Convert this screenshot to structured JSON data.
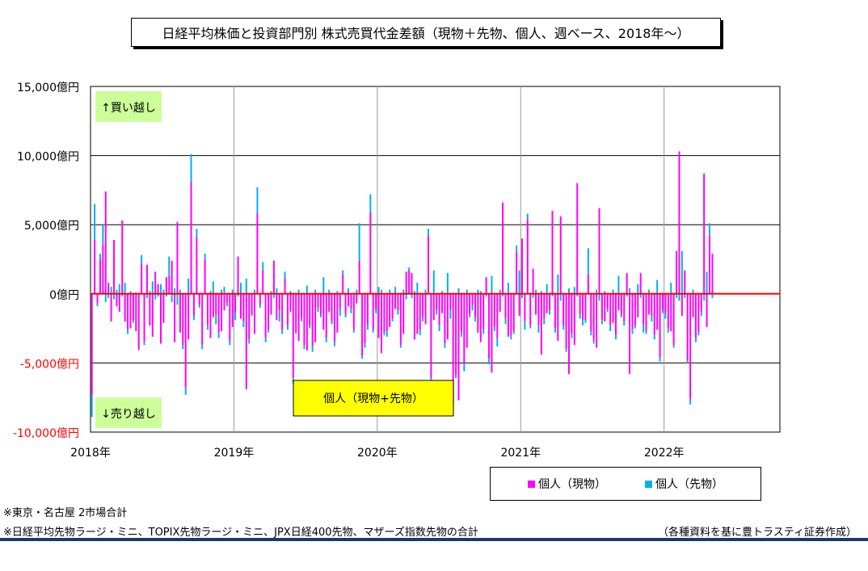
{
  "title": "日経平均株価と投資部門別 株式売買代金差額（現物＋先物、個人、週ベース、2018年〜）",
  "chart_data": {
    "type": "bar",
    "stacked": true,
    "title": "日経平均株価と投資部門別 株式売買代金差額（現物＋先物、個人、週ベース、2018年〜）",
    "xlabel": "",
    "ylabel": "",
    "x_ticks": [
      "2018年",
      "2019年",
      "2020年",
      "2021年",
      "2022年"
    ],
    "y_ticks": [
      "15,000億円",
      "10,000億円",
      "5,000億円",
      "0億円",
      "-5,000億円",
      "-10,000億円"
    ],
    "ylim": [
      -10000,
      15000
    ],
    "xlim_weeks": [
      0,
      250
    ],
    "grid": true,
    "legend_position": "bottom-right",
    "colors": {
      "spot": "#ff00ff",
      "futures": "#00b0f0",
      "zero_line": "#ff0000"
    },
    "annotations": {
      "buy_label": "↑買い越し",
      "sell_label": "↓売り越し",
      "series_box": "個人（現物+先物）"
    },
    "series": [
      {
        "name": "個人（現物）",
        "values": [
          -7300,
          3900,
          -700,
          2500,
          3600,
          7400,
          800,
          -2000,
          3900,
          -900,
          -1300,
          5300,
          -2000,
          -2600,
          -2500,
          -1900,
          -2700,
          -4000,
          2200,
          -3500,
          2100,
          -2300,
          -3100,
          1600,
          700,
          -3600,
          -2100,
          1200,
          1300,
          2400,
          -3500,
          5200,
          -2800,
          -3700,
          -6800,
          -3300,
          8100,
          -1600,
          4100,
          -800,
          -3700,
          2500,
          -2300,
          -3200,
          -1700,
          -1500,
          -2800,
          -2700,
          -1200,
          -700,
          -3400,
          -2400,
          -1400,
          2700,
          -1800,
          -2000,
          -6900,
          -3300,
          -1500,
          -2900,
          5800,
          -800,
          1700,
          -3200,
          -2600,
          -1500,
          2400,
          -1900,
          -1200,
          -2600,
          1100,
          -2300,
          -1300,
          -6100,
          -2800,
          -3400,
          -1800,
          -3700,
          -4100,
          -2300,
          -3800,
          -3500,
          -1000,
          -1500,
          -2600,
          -3200,
          -1300,
          -2000,
          -3500,
          -2800,
          -1100,
          1400,
          -1500,
          -900,
          -1100,
          -2600,
          -700,
          2400,
          -4500,
          -3600,
          -2200,
          5900,
          -2600,
          -1100,
          -3200,
          -4300,
          -2800,
          -2700,
          -2400,
          -1800,
          -1100,
          -1200,
          -3700,
          -2900,
          1600,
          1700,
          1500,
          -3300,
          -2900,
          -2600,
          -1700,
          -2200,
          4200,
          -6100,
          -1900,
          -1200,
          -2300,
          -1400,
          -3600,
          -3300,
          -1200,
          -7600,
          -5900,
          -7700,
          -2800,
          -5100,
          -3900,
          -1500,
          -800,
          -1700,
          -2800,
          -3500,
          -2600,
          1200,
          -4700,
          -5700,
          -2400,
          -3200,
          -1300,
          6600,
          -1800,
          -3100,
          -3000,
          -2700,
          3000,
          -1600,
          4000,
          -2000,
          5400,
          -2300,
          1800,
          -1500,
          -2300,
          -4400,
          -1800,
          -1400,
          -1200,
          6000,
          -2500,
          -3400,
          5600,
          -2300,
          -4000,
          -5800,
          -2900,
          -3700,
          8000,
          -1500,
          -1900,
          -1900,
          1400,
          -2700,
          -3400,
          -3900,
          6200,
          -1900,
          -2000,
          -1100,
          -2300,
          -2100,
          -3000,
          -1200,
          -1500,
          -2000,
          1500,
          -5800,
          -2600,
          -2300,
          -1700,
          1500,
          -2200,
          -2700,
          -1500,
          -1600,
          -3000,
          -2600,
          -4600,
          -1200,
          -1400,
          -2500,
          -2700,
          -3700,
          3100,
          10300,
          -1600,
          1700,
          -4800,
          -7600,
          -1700,
          -3200,
          -2800,
          -1300,
          8700,
          -2400,
          4200,
          2900
        ],
        "color": "#ff00ff"
      },
      {
        "name": "個人（先物）",
        "values": [
          -1600,
          2600,
          -200,
          400,
          1400,
          -600,
          -300,
          500,
          -400,
          300,
          700,
          -200,
          800,
          -300,
          200,
          -200,
          100,
          -100,
          600,
          -200,
          -300,
          200,
          900,
          -400,
          -200,
          700,
          300,
          -200,
          1400,
          -600,
          400,
          -800,
          300,
          -300,
          -500,
          1100,
          2000,
          -300,
          600,
          -200,
          -300,
          400,
          -300,
          200,
          900,
          -700,
          -400,
          300,
          500,
          -200,
          -300,
          300,
          -500,
          -200,
          800,
          -400,
          1100,
          -300,
          -100,
          300,
          1900,
          -200,
          600,
          -300,
          -200,
          200,
          -300,
          400,
          -800,
          -300,
          500,
          -300,
          200,
          -400,
          -100,
          300,
          -200,
          -300,
          600,
          -200,
          -400,
          300,
          -300,
          -200,
          1200,
          -300,
          300,
          -200,
          -300,
          200,
          -500,
          300,
          -200,
          400,
          -300,
          -200,
          300,
          2700,
          -200,
          -300,
          -400,
          1300,
          -200,
          -300,
          500,
          300,
          -200,
          -400,
          300,
          -200,
          500,
          -300,
          -200,
          300,
          -400,
          200,
          -300,
          200,
          800,
          -400,
          -300,
          300,
          500,
          -200,
          1700,
          -300,
          -400,
          200,
          -300,
          1500,
          -600,
          -300,
          -200,
          400,
          -300,
          -500,
          300,
          -200,
          -400,
          -300,
          300,
          200,
          -300,
          -200,
          -400,
          1300,
          -300,
          -600,
          300,
          -200,
          -400,
          800,
          -300,
          -200,
          500,
          1700,
          -300,
          -600,
          400,
          -200,
          -300,
          300,
          -500,
          200,
          -400,
          700,
          -300,
          -200,
          -300,
          1400,
          -500,
          -300,
          -200,
          400,
          -300,
          500,
          -200,
          -300,
          -400,
          -200,
          1900,
          -300,
          -200,
          300,
          -500,
          -300,
          200,
          -200,
          -400,
          300,
          -300,
          1300,
          -200,
          -300,
          -200,
          400,
          -300,
          -200,
          700,
          -300,
          -600,
          -200,
          300,
          -400,
          -300,
          1000,
          -300,
          -200,
          -400,
          -300,
          800,
          -200,
          -300,
          -500,
          3100,
          -300,
          -200,
          -400,
          300,
          -300,
          -200,
          -300,
          -500,
          1600,
          900,
          -300,
          -1400,
          1400,
          300
        ],
        "color": "#00b0f0"
      }
    ]
  },
  "legend": [
    {
      "label": "個人（現物）",
      "color": "#ff00ff"
    },
    {
      "label": "個人（先物）",
      "color": "#00b0f0"
    }
  ],
  "notes": {
    "note1": "※東京・名古屋 2市場合計",
    "note2": "※日経平均先物ラージ・ミニ、TOPIX先物ラージ・ミニ、JPX日経400先物、マザーズ指数先物の合計",
    "credit": "（各種資料を基に豊トラスティ証券作成）"
  }
}
